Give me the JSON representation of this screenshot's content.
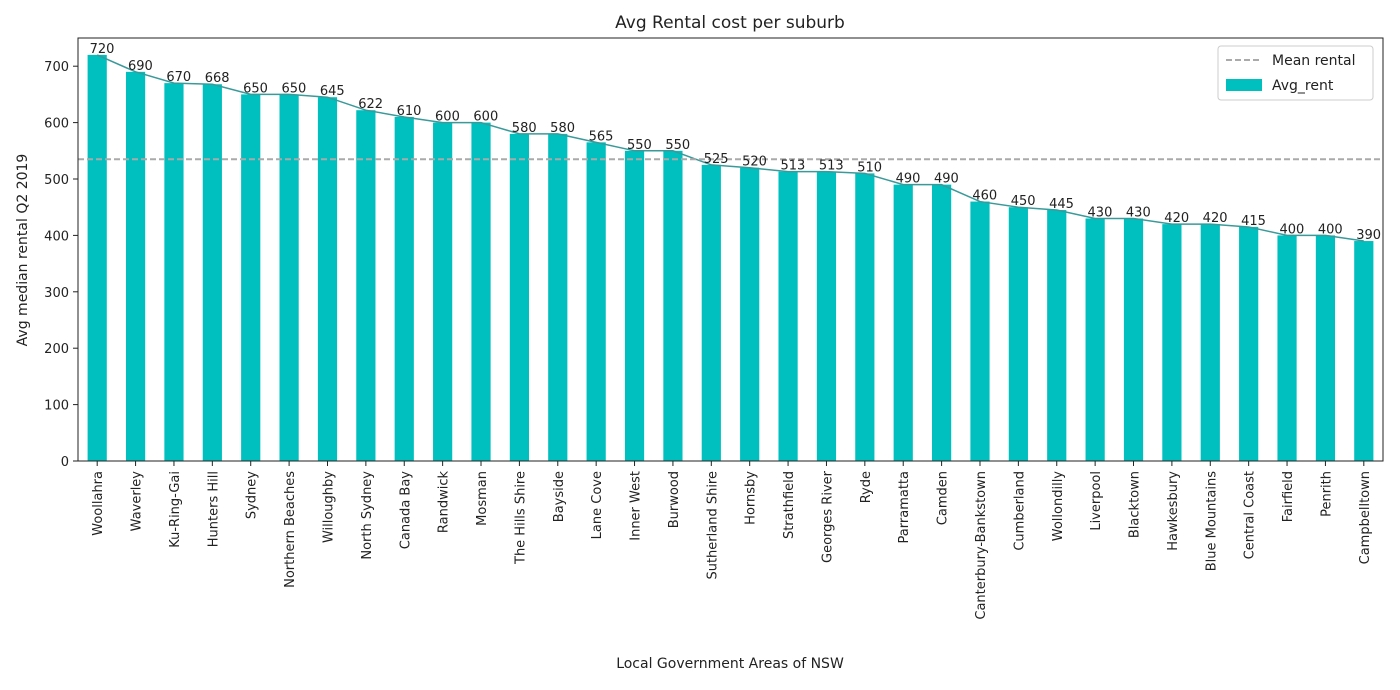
{
  "chart_data": {
    "type": "bar",
    "title": "Avg Rental cost per suburb",
    "xlabel": "Local Government Areas of NSW",
    "ylabel": "Avg median rental Q2 2019",
    "ylim": [
      0,
      750
    ],
    "yticks": [
      0,
      100,
      200,
      300,
      400,
      500,
      600,
      700
    ],
    "grid": false,
    "legend_position": "top-right",
    "categories": [
      "Woollahra",
      "Waverley",
      "Ku-Ring-Gai",
      "Hunters Hill",
      "Sydney",
      "Northern Beaches",
      "Willoughby",
      "North Sydney",
      "Canada Bay",
      "Randwick",
      "Mosman",
      "The Hills Shire",
      "Bayside",
      "Lane Cove",
      "Inner West",
      "Burwood",
      "Sutherland Shire",
      "Hornsby",
      "Strathfield",
      "Georges River",
      "Ryde",
      "Parramatta",
      "Camden",
      "Canterbury-Bankstown",
      "Cumberland",
      "Wollondilly",
      "Liverpool",
      "Blacktown",
      "Hawkesbury",
      "Blue Mountains",
      "Central Coast",
      "Fairfield",
      "Penrith",
      "Campbelltown"
    ],
    "series": [
      {
        "name": "Avg_rent",
        "type": "bar",
        "color": "#00bfbf",
        "values": [
          720,
          690,
          670,
          668,
          650,
          650,
          645,
          622,
          610,
          600,
          600,
          580,
          580,
          565,
          550,
          550,
          525,
          520,
          513,
          513,
          510,
          490,
          490,
          460,
          450,
          445,
          430,
          430,
          420,
          420,
          415,
          400,
          400,
          390
        ]
      },
      {
        "name": "Mean rental",
        "type": "hline",
        "color": "#aaaaaa",
        "value": 535
      }
    ],
    "overlay_line": {
      "color": "#3a9a9a",
      "follows": "Avg_rent"
    }
  }
}
